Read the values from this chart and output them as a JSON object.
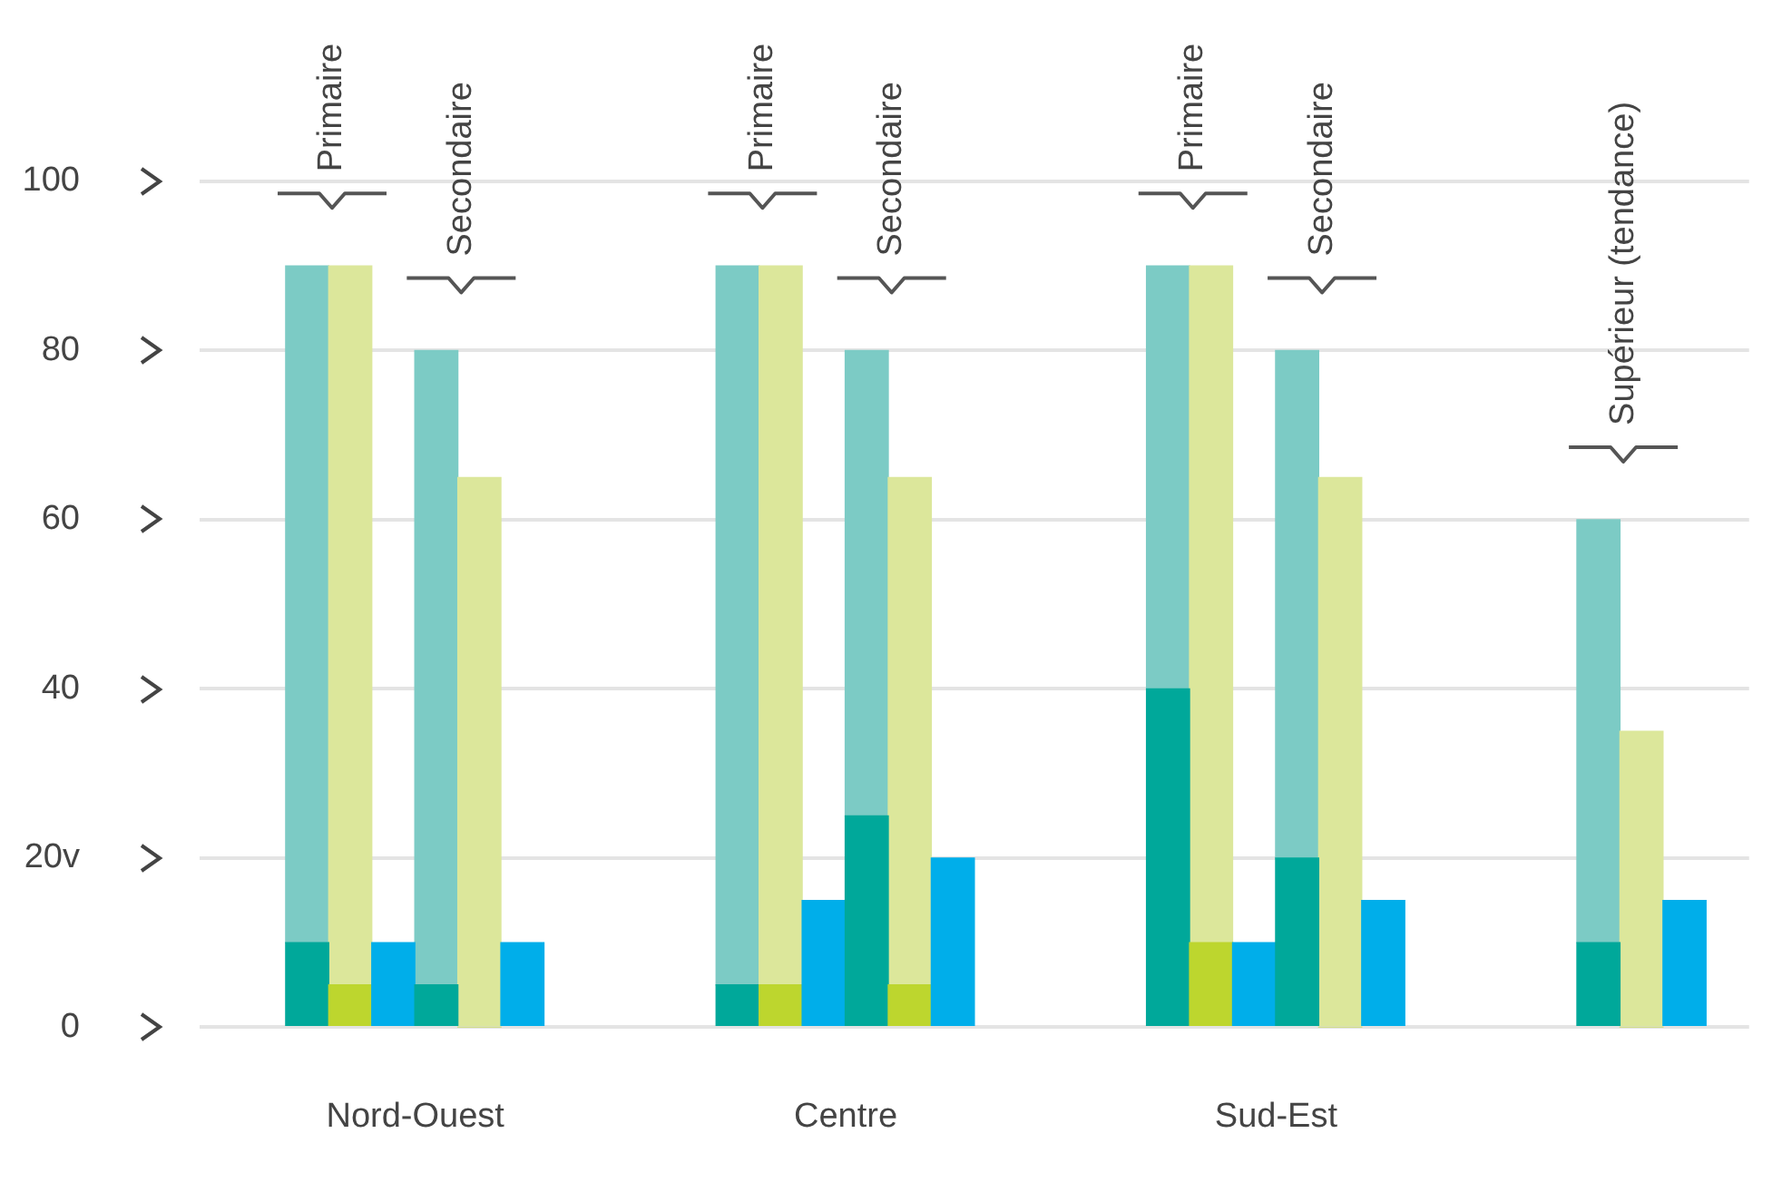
{
  "chart_data": {
    "type": "bar",
    "stacked": true,
    "categories": [
      null,
      null,
      null,
      null,
      "Nord-Ouest",
      null,
      null,
      null,
      null,
      null,
      null,
      null,
      null,
      null,
      "Centre",
      null,
      null,
      null,
      null,
      null,
      null,
      null,
      null,
      null,
      "Sud-Est",
      null,
      null,
      null,
      null,
      null,
      null,
      null,
      null,
      null,
      null,
      null
    ],
    "series": [
      {
        "values": [
          null,
          null,
          10,
          5,
          10,
          5,
          0,
          10,
          null,
          null,
          null,
          null,
          5,
          5,
          15,
          25,
          5,
          20,
          null,
          null,
          null,
          null,
          40,
          10,
          10,
          20,
          0,
          15,
          null,
          null,
          null,
          null,
          10,
          0,
          15,
          null
        ],
        "colors": [
          null,
          null,
          "#00a89a",
          "#bdd62e",
          "#00aeea",
          "#00a89a",
          "#bdd62e",
          "#00aeea",
          null,
          null,
          null,
          null,
          "#00a89a",
          "#bdd62e",
          "#00aeea",
          "#00a89a",
          "#bdd62e",
          "#00aeea",
          null,
          null,
          null,
          null,
          "#00a89a",
          "#bdd62e",
          "#00aeea",
          "#00a89a",
          "#bdd62e",
          "#00aeea",
          null,
          null,
          null,
          null,
          "#00a89a",
          "#bdd62e",
          "#00aeea",
          null
        ]
      },
      {
        "values": [
          null,
          null,
          80,
          85,
          null,
          75,
          65,
          null,
          null,
          null,
          null,
          null,
          85,
          85,
          null,
          55,
          60,
          null,
          null,
          null,
          null,
          null,
          50,
          80,
          null,
          60,
          65,
          null,
          null,
          null,
          null,
          null,
          50,
          35,
          null,
          null
        ],
        "colors": [
          null,
          null,
          "#7ccbc5",
          "#dce79b",
          null,
          "#7ccbc5",
          "#dce79b",
          null,
          null,
          null,
          null,
          null,
          "#7ccbc5",
          "#dce79b",
          null,
          "#7ccbc5",
          "#dce79b",
          null,
          null,
          null,
          null,
          null,
          "#7ccbc5",
          "#dce79b",
          null,
          "#7ccbc5",
          "#dce79b",
          null,
          null,
          null,
          null,
          null,
          "#7ccbc5",
          "#dce79b",
          null,
          null
        ]
      }
    ],
    "ylim": [
      0,
      100
    ],
    "yticks": [
      0,
      {
        "value": 20,
        "label": "20v"
      },
      40,
      60,
      80,
      100
    ],
    "grid": "y",
    "legend": false,
    "annotations": [
      "Primaire",
      "Secondaire",
      "Primaire",
      "Secondaire",
      "Primaire",
      "Secondaire",
      "Supérieur (tendance)"
    ]
  }
}
